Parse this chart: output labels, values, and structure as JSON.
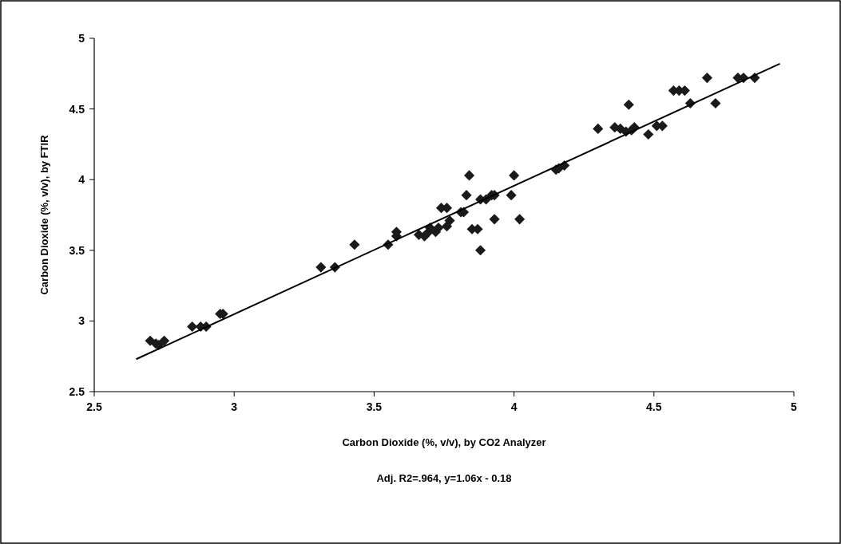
{
  "chart_data": {
    "type": "scatter",
    "xlabel": "Carbon Dioxide (%, v/v), by CO2 Analyzer",
    "ylabel": "Carbon Dioxide (%, v/v), by FTIR",
    "annotations": [
      "Adj. R2=.964, y=1.06x - 0.18"
    ],
    "xlim": [
      2.5,
      5
    ],
    "ylim": [
      2.5,
      5
    ],
    "xticks": [
      2.5,
      3,
      3.5,
      4,
      4.5,
      5
    ],
    "yticks": [
      2.5,
      3,
      3.5,
      4,
      4.5,
      5
    ],
    "grid": false,
    "marker": "diamond",
    "series": [
      {
        "color": "#1a1a1a",
        "x": [
          2.7,
          2.72,
          2.73,
          2.75,
          2.85,
          2.88,
          2.9,
          2.95,
          2.96,
          3.31,
          3.36,
          3.43,
          3.55,
          3.58,
          3.58,
          3.66,
          3.68,
          3.69,
          3.7,
          3.72,
          3.73,
          3.74,
          3.76,
          3.76,
          3.77,
          3.81,
          3.82,
          3.83,
          3.84,
          3.85,
          3.87,
          3.88,
          3.88,
          3.9,
          3.92,
          3.93,
          3.93,
          3.99,
          4.0,
          4.02,
          4.15,
          4.16,
          4.18,
          4.3,
          4.36,
          4.38,
          4.4,
          4.41,
          4.42,
          4.43,
          4.48,
          4.51,
          4.53,
          4.57,
          4.59,
          4.61,
          4.63,
          4.69,
          4.72,
          4.8,
          4.82,
          4.86
        ],
        "values": [
          2.86,
          2.84,
          2.83,
          2.86,
          2.96,
          2.96,
          2.96,
          3.05,
          3.05,
          3.38,
          3.38,
          3.54,
          3.54,
          3.6,
          3.63,
          3.61,
          3.6,
          3.62,
          3.66,
          3.63,
          3.66,
          3.8,
          3.8,
          3.67,
          3.71,
          3.77,
          3.77,
          3.89,
          4.03,
          3.65,
          3.65,
          3.5,
          3.86,
          3.86,
          3.89,
          3.89,
          3.72,
          3.89,
          4.03,
          3.72,
          4.07,
          4.08,
          4.1,
          4.36,
          4.37,
          4.36,
          4.34,
          4.53,
          4.35,
          4.37,
          4.32,
          4.38,
          4.38,
          4.63,
          4.63,
          4.63,
          4.54,
          4.72,
          4.54,
          4.72,
          4.72,
          4.72
        ]
      },
      {
        "type": "line",
        "color": "#000000",
        "x": [
          2.65,
          4.95
        ],
        "values": [
          2.73,
          4.82
        ],
        "marker": "none"
      }
    ]
  }
}
